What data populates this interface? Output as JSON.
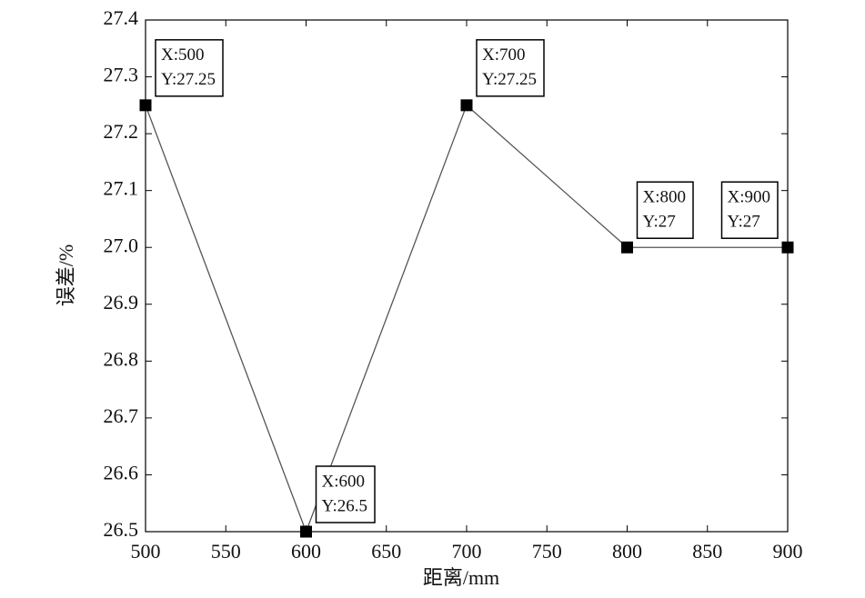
{
  "chart_data": {
    "type": "line",
    "xlabel": "距离/mm",
    "ylabel": "误差/%",
    "x": [
      500,
      600,
      700,
      800,
      900
    ],
    "series": [
      {
        "color": "#555555",
        "marker_color": "#000000",
        "values": [
          27.25,
          26.5,
          27.25,
          27,
          27
        ]
      }
    ],
    "xlim": [
      500,
      900
    ],
    "xticks": [
      500,
      550,
      600,
      650,
      700,
      750,
      800,
      850,
      900
    ],
    "ylim": [
      26.5,
      27.4
    ],
    "yticks": [
      26.5,
      26.6,
      26.7,
      26.8,
      26.9,
      {
        "value": 27,
        "label": "27.0"
      },
      27.1,
      27.2,
      27.3,
      27.4
    ],
    "annotations": [
      {
        "x": "X:500",
        "y": "Y:27.25"
      },
      {
        "x": "X:600",
        "y": "Y:26.5"
      },
      {
        "x": "X:700",
        "y": "Y:27.25"
      },
      {
        "x": "X:800",
        "y": "Y:27"
      },
      {
        "x": "X:900",
        "y": "Y:27"
      }
    ]
  }
}
